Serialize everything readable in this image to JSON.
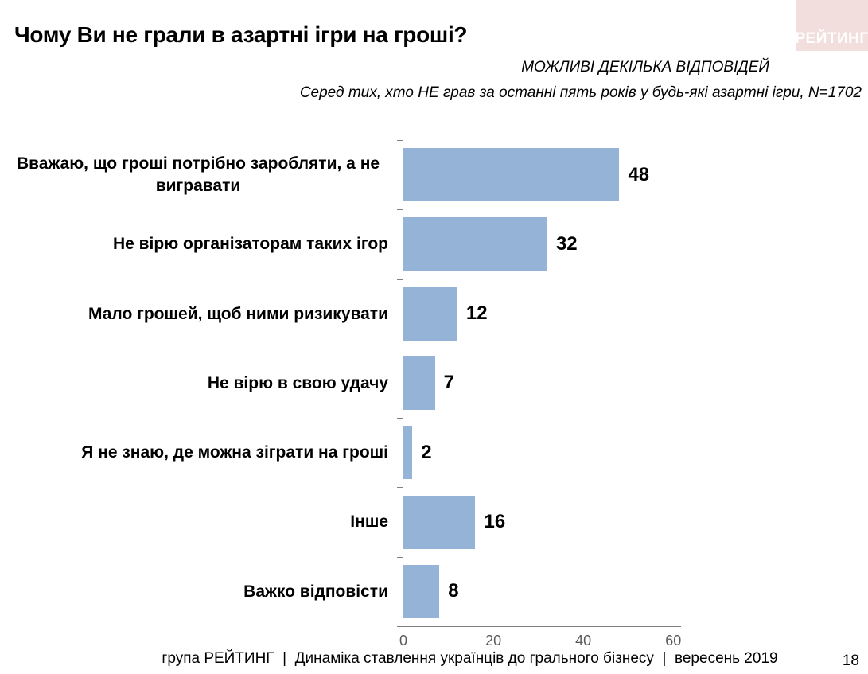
{
  "header": {
    "title": "Чому Ви не грали в азартні ігри на гроші?",
    "note": "МОЖЛИВІ ДЕКІЛЬКА ВІДПОВІДЕЙ",
    "sample_note": "Серед тих, хто НЕ грав за останні пять років у будь-які азартні ігри, N=1702"
  },
  "logo": {
    "text": "РЕЙТИНГ",
    "background": "#F2DEDD",
    "text_color": "#FFFFFF"
  },
  "chart_data": {
    "type": "bar",
    "orientation": "horizontal",
    "title": "Чому Ви не грали в азартні ігри на гроші?",
    "categories": [
      "Вважаю, що гроші потрібно заробляти, а не вигравати",
      "Не вірю організаторам таких ігор",
      "Мало грошей, щоб ними ризикувати",
      "Не вірю в свою удачу",
      "Я не знаю, де можна зіграти на гроші",
      "Інше",
      "Важко відповісти"
    ],
    "values": [
      48,
      32,
      12,
      7,
      2,
      16,
      8
    ],
    "x_ticks": [
      0,
      20,
      40,
      60
    ],
    "xlim": [
      0,
      61
    ],
    "grid": false,
    "legend": false,
    "data_labels": true,
    "bar_color": "#95B3D7",
    "axis_color": "#808080",
    "tick_label_color": "#595959",
    "value_label_color": "#000000"
  },
  "footer": {
    "caption": "група РЕЙТИНГ  |  Динаміка ставлення українців до грального бізнесу  |  вересень 2019",
    "page": "18"
  }
}
